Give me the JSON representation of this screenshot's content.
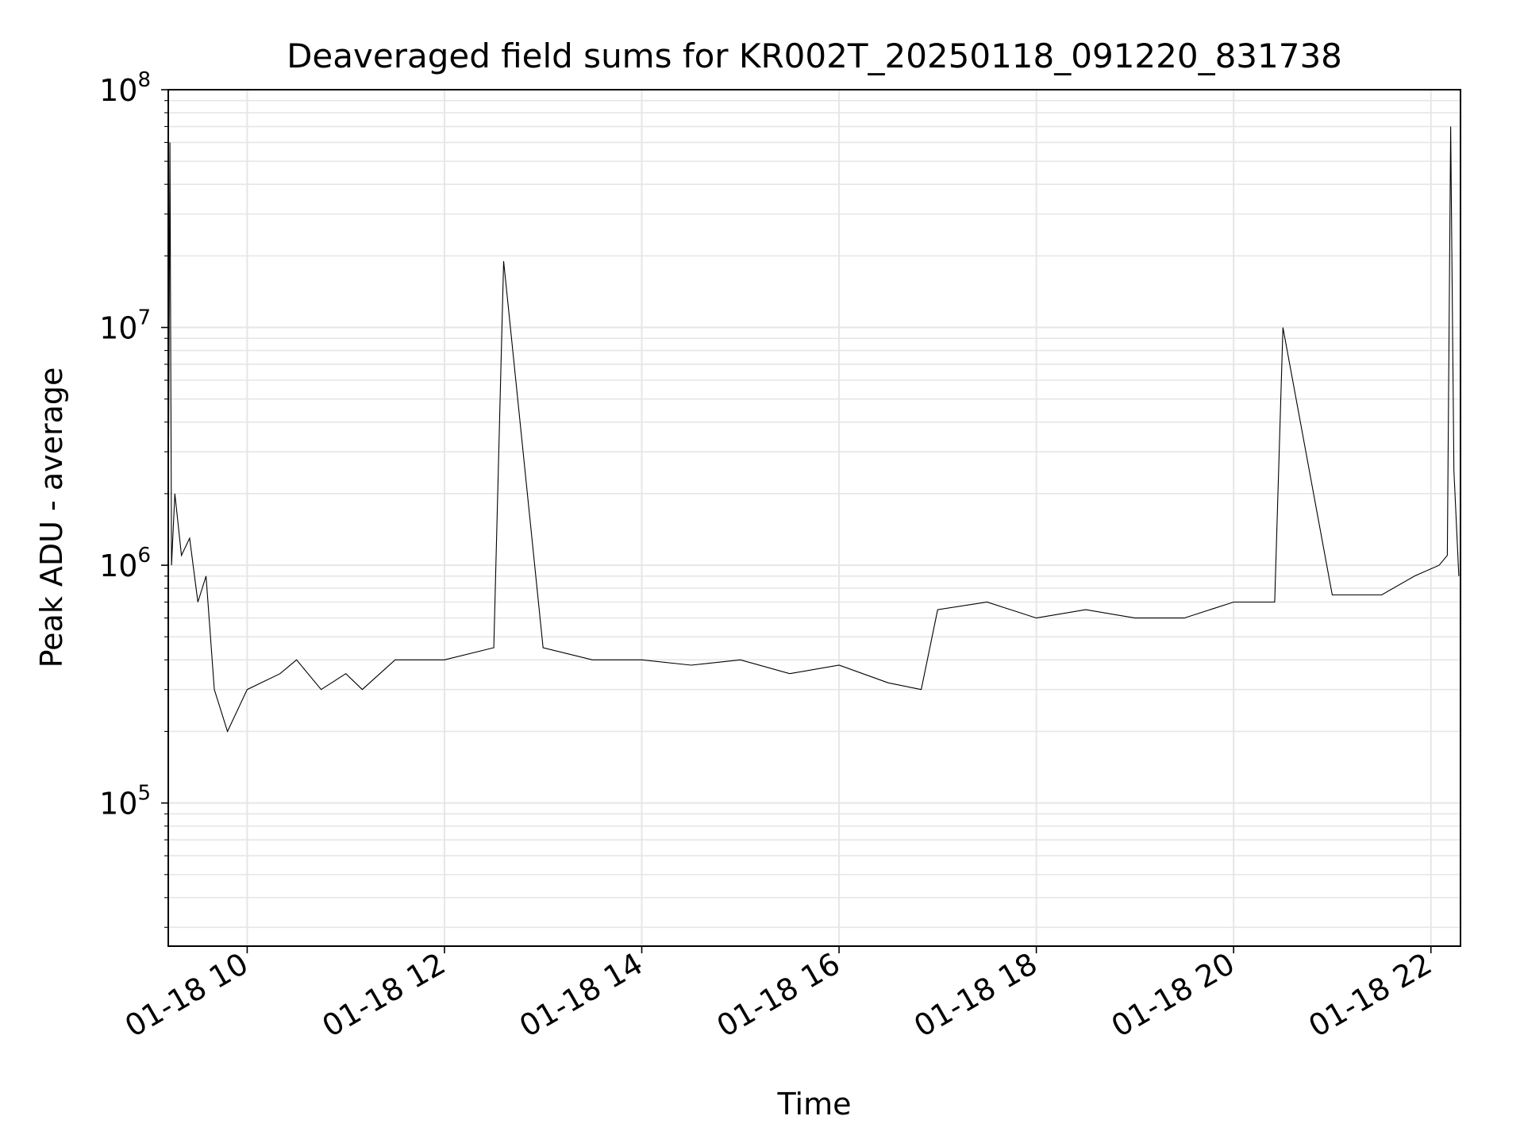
{
  "chart_data": {
    "type": "line",
    "title": "Deaveraged field sums for KR002T_20250118_091220_831738",
    "xlabel": "Time",
    "ylabel": "Peak ADU - average",
    "x_range": [
      "2025-01-18T09:12",
      "2025-01-18T22:18"
    ],
    "ylim": [
      25000,
      100000000
    ],
    "yscale": "log",
    "grid": true,
    "x_tick_labels": [
      "01-18 10",
      "01-18 12",
      "01-18 14",
      "01-18 16",
      "01-18 18",
      "01-18 20",
      "01-18 22"
    ],
    "x_tick_times": [
      "2025-01-18T10:00",
      "2025-01-18T12:00",
      "2025-01-18T14:00",
      "2025-01-18T16:00",
      "2025-01-18T18:00",
      "2025-01-18T20:00",
      "2025-01-18T22:00"
    ],
    "y_tick_labels": [
      {
        "base": "10",
        "exp": "5",
        "value": 100000
      },
      {
        "base": "10",
        "exp": "6",
        "value": 1000000
      },
      {
        "base": "10",
        "exp": "7",
        "value": 10000000
      },
      {
        "base": "10",
        "exp": "8",
        "value": 100000000
      }
    ],
    "line_color": "#000000",
    "series": [
      {
        "x": [
          "2025-01-18T09:12",
          "2025-01-18T09:13",
          "2025-01-18T09:14",
          "2025-01-18T09:16",
          "2025-01-18T09:20",
          "2025-01-18T09:25",
          "2025-01-18T09:30",
          "2025-01-18T09:35",
          "2025-01-18T09:40",
          "2025-01-18T09:48",
          "2025-01-18T10:00",
          "2025-01-18T10:20",
          "2025-01-18T10:30",
          "2025-01-18T10:45",
          "2025-01-18T11:00",
          "2025-01-18T11:10",
          "2025-01-18T11:30",
          "2025-01-18T12:00",
          "2025-01-18T12:30",
          "2025-01-18T12:36",
          "2025-01-18T13:00",
          "2025-01-18T13:30",
          "2025-01-18T14:00",
          "2025-01-18T14:30",
          "2025-01-18T15:00",
          "2025-01-18T15:30",
          "2025-01-18T16:00",
          "2025-01-18T16:30",
          "2025-01-18T16:50",
          "2025-01-18T17:00",
          "2025-01-18T17:30",
          "2025-01-18T18:00",
          "2025-01-18T18:30",
          "2025-01-18T19:00",
          "2025-01-18T19:30",
          "2025-01-18T20:00",
          "2025-01-18T20:25",
          "2025-01-18T20:30",
          "2025-01-18T21:00",
          "2025-01-18T21:30",
          "2025-01-18T21:50",
          "2025-01-18T22:05",
          "2025-01-18T22:10",
          "2025-01-18T22:12",
          "2025-01-18T22:14",
          "2025-01-18T22:17"
        ],
        "y": [
          1500000,
          60000000,
          1000000,
          2000000,
          1100000,
          1300000,
          700000,
          900000,
          300000,
          200000,
          300000,
          350000,
          400000,
          300000,
          350000,
          300000,
          400000,
          400000,
          450000,
          19000000,
          450000,
          400000,
          400000,
          380000,
          400000,
          350000,
          380000,
          320000,
          300000,
          650000,
          700000,
          600000,
          650000,
          600000,
          600000,
          700000,
          700000,
          10000000,
          750000,
          750000,
          900000,
          1000000,
          1100000,
          70000000,
          2500000,
          900000
        ]
      }
    ]
  }
}
